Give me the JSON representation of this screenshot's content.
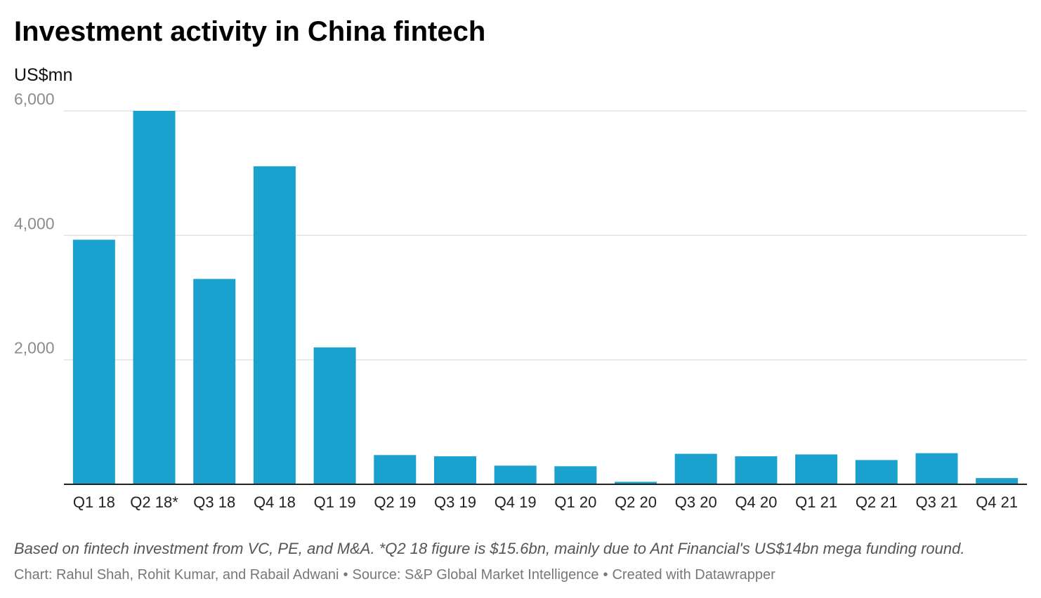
{
  "chart_data": {
    "type": "bar",
    "title": "Investment activity in China fintech",
    "subtitle": "US$mn",
    "xlabel": "",
    "ylabel": "US$mn",
    "categories": [
      "Q1 18",
      "Q2 18*",
      "Q3 18",
      "Q4 18",
      "Q1 19",
      "Q2 19",
      "Q3 19",
      "Q4 19",
      "Q1 20",
      "Q2 20",
      "Q3 20",
      "Q4 20",
      "Q1 21",
      "Q2 21",
      "Q3 21",
      "Q4 21"
    ],
    "values": [
      3930,
      6000,
      3300,
      5110,
      2200,
      470,
      450,
      300,
      290,
      40,
      490,
      450,
      480,
      390,
      500,
      100
    ],
    "ylim": [
      0,
      6000
    ],
    "yticks": [
      2000,
      4000,
      6000
    ],
    "ytick_labels": [
      "2,000",
      "4,000",
      "6,000"
    ],
    "grid": true,
    "bar_color": "#1aa1ce"
  },
  "notes": "Based on fintech investment from VC, PE, and M&A. *Q2 18 figure is $15.6bn, mainly due to Ant Financial's US$14bn mega funding round.",
  "credits": {
    "chart": "Chart: Rahul Shah, Rohit Kumar, and Rabail Adwani",
    "separator": "•",
    "source": "Source: S&P Global Market Intelligence",
    "created": "Created with Datawrapper"
  }
}
